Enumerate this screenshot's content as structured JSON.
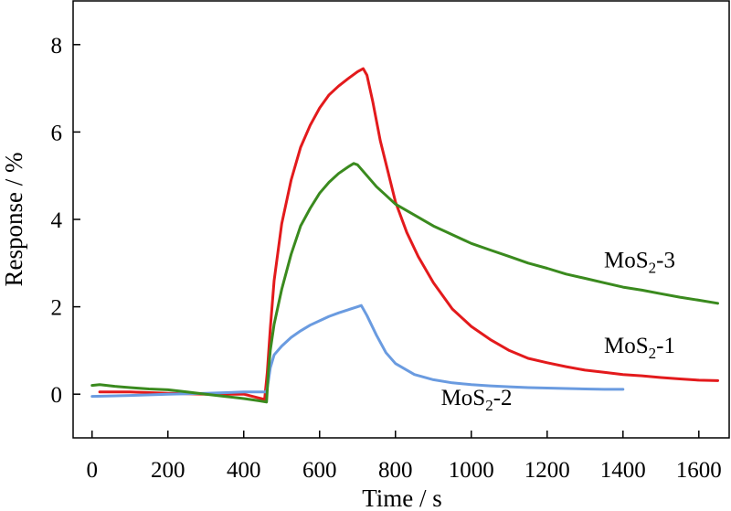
{
  "chart_data": {
    "type": "line",
    "xlabel": "Time / s",
    "ylabel": "Response / %",
    "xlim": [
      -50,
      1680
    ],
    "ylim": [
      -1,
      9
    ],
    "x_ticks": [
      0,
      200,
      400,
      600,
      800,
      1000,
      1200,
      1400,
      1600
    ],
    "y_ticks": [
      0,
      2,
      4,
      6,
      8
    ],
    "grid": false,
    "series": [
      {
        "name": "MoS2-1",
        "label_prefix": "MoS",
        "label_sub": "2",
        "label_suffix": "-1",
        "color": "#e31a1c",
        "x": [
          20,
          100,
          200,
          300,
          400,
          455,
          462,
          470,
          480,
          500,
          525,
          550,
          575,
          600,
          625,
          650,
          675,
          700,
          715,
          725,
          740,
          760,
          780,
          800,
          830,
          860,
          900,
          950,
          1000,
          1050,
          1100,
          1150,
          1200,
          1250,
          1300,
          1350,
          1400,
          1450,
          1500,
          1550,
          1600,
          1650
        ],
        "y": [
          0.05,
          0.05,
          0.02,
          0.0,
          0.0,
          -0.12,
          0.5,
          1.5,
          2.6,
          3.9,
          4.9,
          5.65,
          6.15,
          6.55,
          6.85,
          7.05,
          7.22,
          7.38,
          7.45,
          7.3,
          6.7,
          5.8,
          5.1,
          4.4,
          3.7,
          3.15,
          2.55,
          1.95,
          1.55,
          1.25,
          1.0,
          0.82,
          0.72,
          0.63,
          0.55,
          0.5,
          0.45,
          0.42,
          0.38,
          0.35,
          0.32,
          0.31
        ]
      },
      {
        "name": "MoS2-2",
        "label_prefix": "MoS",
        "label_sub": "2",
        "label_suffix": "-2",
        "color": "#6a9be0",
        "x": [
          0,
          100,
          200,
          300,
          400,
          460,
          465,
          470,
          480,
          500,
          525,
          550,
          575,
          600,
          625,
          650,
          675,
          700,
          710,
          725,
          750,
          775,
          800,
          850,
          900,
          950,
          1000,
          1050,
          1100,
          1150,
          1200,
          1250,
          1300,
          1350,
          1400
        ],
        "y": [
          -0.05,
          -0.03,
          0.0,
          0.02,
          0.05,
          0.05,
          0.3,
          0.6,
          0.9,
          1.1,
          1.3,
          1.45,
          1.58,
          1.68,
          1.78,
          1.86,
          1.93,
          2.0,
          2.03,
          1.8,
          1.35,
          0.95,
          0.7,
          0.45,
          0.33,
          0.26,
          0.22,
          0.19,
          0.17,
          0.15,
          0.14,
          0.13,
          0.12,
          0.11,
          0.11
        ]
      },
      {
        "name": "MoS2-3",
        "label_prefix": "MoS",
        "label_sub": "2",
        "label_suffix": "-3",
        "color": "#3a8a1e",
        "x": [
          0,
          20,
          60,
          100,
          150,
          200,
          250,
          300,
          350,
          400,
          440,
          460,
          465,
          470,
          480,
          500,
          525,
          550,
          575,
          600,
          625,
          650,
          675,
          690,
          700,
          725,
          750,
          775,
          800,
          850,
          900,
          950,
          1000,
          1050,
          1100,
          1150,
          1200,
          1250,
          1300,
          1350,
          1400,
          1450,
          1500,
          1550,
          1600,
          1650
        ],
        "y": [
          0.2,
          0.22,
          0.18,
          0.15,
          0.12,
          0.1,
          0.05,
          0.0,
          -0.05,
          -0.1,
          -0.15,
          -0.18,
          0.5,
          1.0,
          1.6,
          2.4,
          3.2,
          3.85,
          4.25,
          4.6,
          4.85,
          5.05,
          5.2,
          5.28,
          5.25,
          5.0,
          4.75,
          4.55,
          4.35,
          4.1,
          3.85,
          3.65,
          3.45,
          3.3,
          3.15,
          3.0,
          2.88,
          2.75,
          2.65,
          2.55,
          2.45,
          2.38,
          2.3,
          2.22,
          2.15,
          2.08
        ]
      }
    ],
    "annotations": [
      {
        "series": "MoS2-3",
        "x": 1350,
        "y": 2.9
      },
      {
        "series": "MoS2-1",
        "x": 1350,
        "y": 0.95
      },
      {
        "series": "MoS2-2",
        "x": 920,
        "y": -0.25
      }
    ]
  }
}
